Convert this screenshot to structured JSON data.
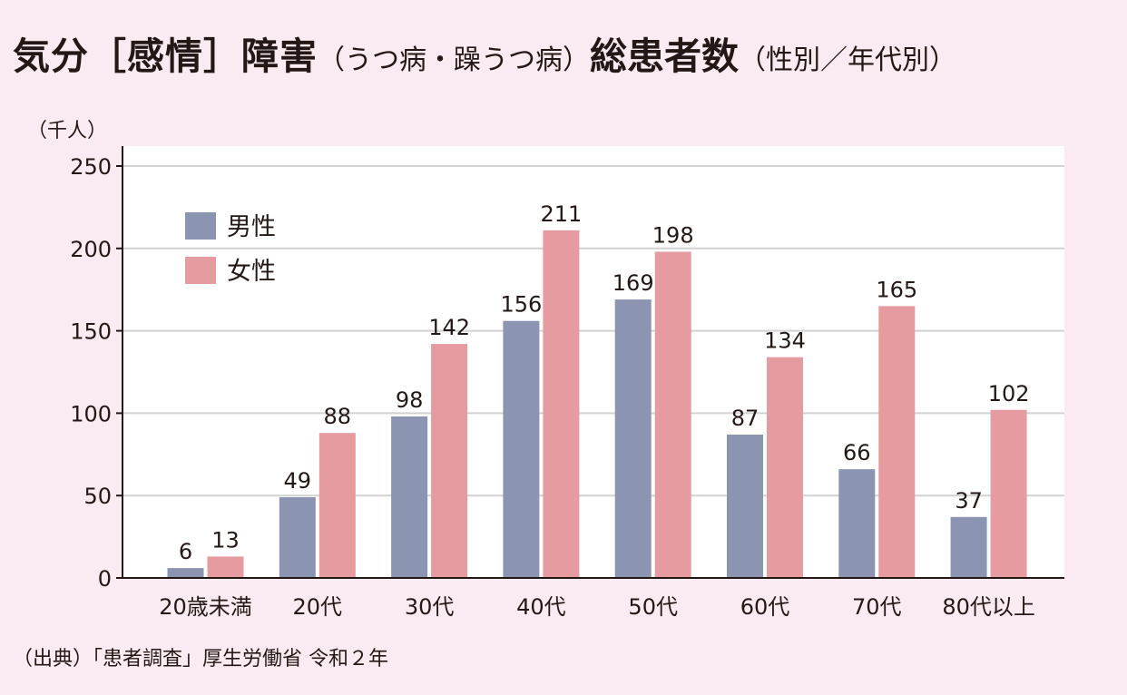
{
  "title": {
    "main": "気分［感情］障害",
    "sub": "（うつ病・躁うつ病）",
    "total": "総患者数",
    "sub2": "（性別／年代別）"
  },
  "source": "（出典）「患者調査」厚生労働省 令和２年",
  "colors": {
    "background": "#f9ebf1",
    "plot_background": "#ffffff",
    "male": "#8b95b2",
    "female": "#e59ba0",
    "grid": "#d2d2d2",
    "axis": "#231815"
  },
  "chart_data": {
    "type": "bar",
    "title": "",
    "ylabel": "（千人）",
    "xlabel": "",
    "ylim": [
      0,
      250
    ],
    "yticks": [
      0,
      50,
      100,
      150,
      200,
      250
    ],
    "grid": true,
    "legend_position": "top-left",
    "categories": [
      "20歳未満",
      "20代",
      "30代",
      "40代",
      "50代",
      "60代",
      "70代",
      "80代以上"
    ],
    "series": [
      {
        "name": "男性",
        "color": "#8b95b2",
        "values": [
          6,
          49,
          98,
          156,
          169,
          87,
          66,
          37
        ]
      },
      {
        "name": "女性",
        "color": "#e59ba0",
        "values": [
          13,
          88,
          142,
          211,
          198,
          134,
          165,
          102
        ]
      }
    ]
  }
}
